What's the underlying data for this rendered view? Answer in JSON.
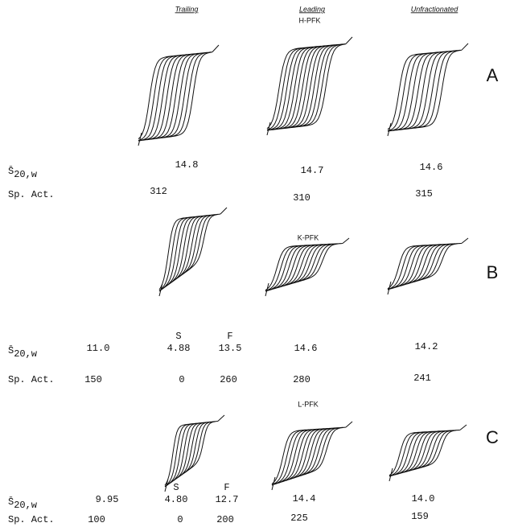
{
  "columns": {
    "trailing": "Trailing",
    "leading": "Leading",
    "unfractionated": "Unfractionated"
  },
  "row_labels": {
    "s_symbol": "S̄",
    "s_subscript": "20,w",
    "sp_act": "Sp. Act."
  },
  "panels": [
    {
      "letter": "A",
      "label": "H-PFK",
      "trailing": [
        {
          "s20w": "14.8",
          "sp_act": "312"
        }
      ],
      "leading": {
        "s20w": "14.7",
        "sp_act": "310"
      },
      "unfractionated": {
        "s20w": "14.6",
        "sp_act": "315"
      }
    },
    {
      "letter": "B",
      "label": "K-PFK",
      "trailing": [
        {
          "s20w": "11.0",
          "sp_act": "150"
        },
        {
          "head": "S",
          "s20w": "4.88",
          "sp_act": "0"
        },
        {
          "head": "F",
          "s20w": "13.5",
          "sp_act": "260"
        }
      ],
      "leading": {
        "s20w": "14.6",
        "sp_act": "280"
      },
      "unfractionated": {
        "s20w": "14.2",
        "sp_act": "241"
      }
    },
    {
      "letter": "C",
      "label": "L-PFK",
      "trailing": [
        {
          "s20w": "9.95",
          "sp_act": "100"
        },
        {
          "head": "S",
          "s20w": "4.80",
          "sp_act": "0"
        },
        {
          "head": "F",
          "s20w": "12.7",
          "sp_act": "200"
        }
      ],
      "leading": {
        "s20w": "14.4",
        "sp_act": "225"
      },
      "unfractionated": {
        "s20w": "14.0",
        "sp_act": "159"
      }
    }
  ]
}
